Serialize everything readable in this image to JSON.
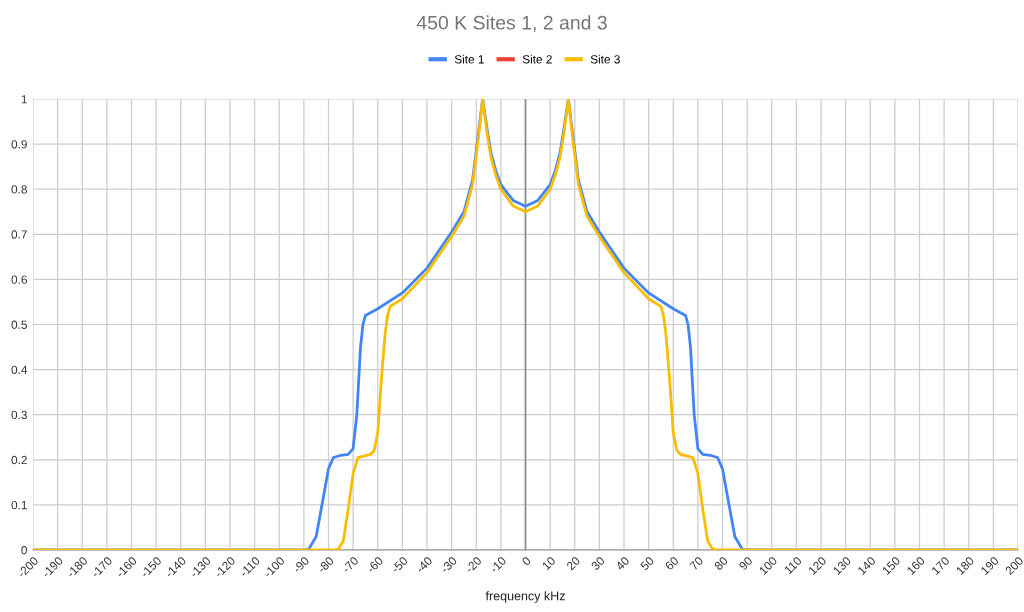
{
  "chart_data": {
    "type": "line",
    "title": "450 K Sites 1, 2 and 3",
    "xlabel": "frequency kHz",
    "xlim": [
      -200,
      200
    ],
    "xticks": [
      -200,
      -190,
      -180,
      -170,
      -160,
      -150,
      -140,
      -130,
      -120,
      -110,
      -100,
      -90,
      -80,
      -70,
      -60,
      -50,
      -40,
      -30,
      -20,
      -10,
      0,
      10,
      20,
      30,
      40,
      50,
      60,
      70,
      80,
      90,
      100,
      110,
      120,
      130,
      140,
      150,
      160,
      170,
      180,
      190,
      200
    ],
    "ylim": [
      0,
      1
    ],
    "yticks": [
      0,
      0.1,
      0.2,
      0.3,
      0.4,
      0.5,
      0.6,
      0.7,
      0.8,
      0.9,
      1
    ],
    "grid": true,
    "legend": "top",
    "marker": "none",
    "line_style": "solid",
    "ref_lines": [
      {
        "axis": "x",
        "value": 0,
        "color": "#888888"
      }
    ],
    "series": [
      {
        "name": "Site 1",
        "color": "#4285f4",
        "x": [
          -200,
          -90,
          -88,
          -85,
          -82,
          -80,
          -78,
          -75,
          -72,
          -70,
          -68.5,
          -67,
          -66,
          -65,
          -60,
          -50,
          -40,
          -30,
          -25,
          -21.5,
          -19,
          -17.4,
          -15.5,
          -14,
          -12,
          -10,
          -5,
          0,
          5,
          10,
          12,
          14,
          15.5,
          17.4,
          19,
          21.5,
          25,
          30,
          40,
          50,
          60,
          65,
          66,
          67,
          68.5,
          70,
          72,
          75,
          78,
          80,
          82,
          85,
          88,
          90,
          200
        ],
        "values": [
          0,
          0,
          0.002,
          0.03,
          0.12,
          0.18,
          0.205,
          0.21,
          0.212,
          0.225,
          0.3,
          0.45,
          0.5,
          0.52,
          0.535,
          0.57,
          0.625,
          0.705,
          0.75,
          0.82,
          0.93,
          1,
          0.93,
          0.88,
          0.84,
          0.81,
          0.775,
          0.762,
          0.775,
          0.81,
          0.84,
          0.88,
          0.93,
          1,
          0.93,
          0.82,
          0.75,
          0.705,
          0.625,
          0.57,
          0.535,
          0.52,
          0.5,
          0.45,
          0.3,
          0.225,
          0.212,
          0.21,
          0.205,
          0.18,
          0.12,
          0.03,
          0.002,
          0,
          0
        ]
      },
      {
        "name": "Site 2",
        "color": "#ea4335"
      },
      {
        "name": "Site 3",
        "color": "#fbbc04",
        "x": [
          -200,
          -78,
          -76,
          -74,
          -72,
          -70,
          -68,
          -63,
          -61.5,
          -60,
          -58.5,
          -57,
          -56,
          -55,
          -50,
          -40,
          -30,
          -25,
          -21.5,
          -19,
          -17.4,
          -15.5,
          -14,
          -12,
          -10,
          -5,
          0,
          5,
          10,
          12,
          14,
          15.5,
          17.4,
          19,
          21.5,
          25,
          30,
          40,
          50,
          55,
          56,
          57,
          58.5,
          60,
          61.5,
          63,
          68,
          70,
          72,
          74,
          76,
          78,
          200
        ],
        "values": [
          0,
          0,
          0.002,
          0.02,
          0.09,
          0.17,
          0.205,
          0.212,
          0.22,
          0.26,
          0.38,
          0.48,
          0.52,
          0.54,
          0.557,
          0.615,
          0.695,
          0.74,
          0.81,
          0.92,
          1,
          0.92,
          0.87,
          0.83,
          0.8,
          0.763,
          0.75,
          0.763,
          0.8,
          0.83,
          0.87,
          0.92,
          1,
          0.92,
          0.81,
          0.74,
          0.695,
          0.615,
          0.557,
          0.54,
          0.52,
          0.48,
          0.38,
          0.26,
          0.22,
          0.212,
          0.205,
          0.17,
          0.09,
          0.02,
          0.002,
          0,
          0
        ]
      }
    ]
  }
}
